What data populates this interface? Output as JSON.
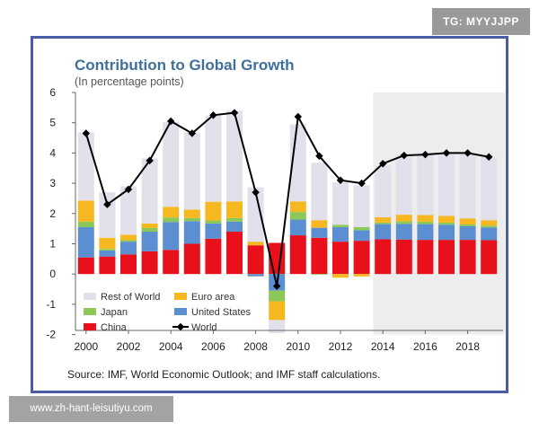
{
  "watermark_tag": "TG: MYYJJPP",
  "watermark_url": "www.zh-hant-leisutiyu.com",
  "chart_data": {
    "type": "bar",
    "stacked": true,
    "title": "Contribution to Global Growth",
    "subtitle": "(In percentage points)",
    "source": "Source: IMF, World Economic Outlook; and IMF staff calculations.",
    "categories": [
      "2000",
      "2001",
      "2002",
      "2003",
      "2004",
      "2005",
      "2006",
      "2007",
      "2008",
      "2009",
      "2010",
      "2011",
      "2012",
      "2013",
      "2014",
      "2015",
      "2016",
      "2017",
      "2018",
      "2019"
    ],
    "x_tick_labels": [
      "2000",
      "2002",
      "2004",
      "2006",
      "2008",
      "2010",
      "2012",
      "2014",
      "2016",
      "2018"
    ],
    "y_tick_labels": [
      "6",
      "5",
      "4",
      "3",
      "2",
      "1",
      "0",
      "-1",
      "-2"
    ],
    "ylim": [
      -2,
      6
    ],
    "projection_start": "2014",
    "series": [
      {
        "name": "China",
        "color": "#e8101a",
        "values": [
          0.55,
          0.58,
          0.65,
          0.75,
          0.8,
          1.0,
          1.17,
          1.4,
          0.95,
          1.03,
          1.28,
          1.2,
          1.07,
          1.1,
          1.15,
          1.14,
          1.13,
          1.13,
          1.13,
          1.12
        ]
      },
      {
        "name": "United States",
        "color": "#5b8fd1",
        "values": [
          1.0,
          0.2,
          0.42,
          0.65,
          0.92,
          0.75,
          0.5,
          0.33,
          -0.07,
          -0.55,
          0.52,
          0.33,
          0.48,
          0.35,
          0.5,
          0.52,
          0.52,
          0.5,
          0.45,
          0.42
        ]
      },
      {
        "name": "Japan",
        "color": "#8cc858",
        "values": [
          0.18,
          0.05,
          0.05,
          0.12,
          0.15,
          0.1,
          0.1,
          0.12,
          -0.01,
          -0.35,
          0.25,
          -0.02,
          0.08,
          0.1,
          0.05,
          0.08,
          0.08,
          0.07,
          0.06,
          0.06
        ]
      },
      {
        "name": "Euro area",
        "color": "#f5b821",
        "values": [
          0.7,
          0.37,
          0.18,
          0.15,
          0.35,
          0.28,
          0.62,
          0.55,
          0.12,
          -0.62,
          0.35,
          0.25,
          -0.12,
          -0.08,
          0.18,
          0.22,
          0.22,
          0.22,
          0.2,
          0.18
        ]
      },
      {
        "name": "Rest of World",
        "color": "#e2e0ea",
        "values": [
          2.25,
          1.5,
          1.6,
          2.15,
          2.8,
          2.55,
          2.85,
          3.0,
          1.8,
          -0.43,
          2.55,
          1.9,
          1.4,
          1.38,
          1.7,
          1.98,
          2.0,
          2.08,
          2.16,
          2.08
        ]
      },
      {
        "name": "World",
        "color": "#000000",
        "type": "line",
        "values": [
          4.65,
          2.3,
          2.8,
          3.75,
          5.05,
          4.65,
          5.25,
          5.33,
          2.7,
          -0.4,
          5.2,
          3.9,
          3.1,
          3.0,
          3.65,
          3.92,
          3.95,
          4.0,
          4.0,
          3.87
        ]
      }
    ],
    "legend_order": [
      "Rest of World",
      "Euro area",
      "Japan",
      "United States",
      "China",
      "World"
    ],
    "legend_placement": "bottom-left",
    "grid": false
  }
}
